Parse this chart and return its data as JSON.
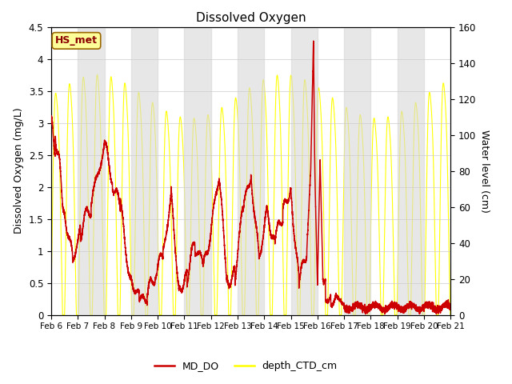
{
  "title": "Dissolved Oxygen",
  "ylabel_left": "Dissolved Oxygen (mg/L)",
  "ylabel_right": "Water level (cm)",
  "ylim_left": [
    0.0,
    4.5
  ],
  "ylim_right": [
    0,
    160
  ],
  "yticks_left": [
    0.0,
    0.5,
    1.0,
    1.5,
    2.0,
    2.5,
    3.0,
    3.5,
    4.0,
    4.5
  ],
  "yticks_right": [
    0,
    20,
    40,
    60,
    80,
    100,
    120,
    140,
    160
  ],
  "xtick_labels": [
    "Feb 6",
    "Feb 7",
    "Feb 8",
    "Feb 9",
    "Feb 10",
    "Feb 11",
    "Feb 12",
    "Feb 13",
    "Feb 14",
    "Feb 15",
    "Feb 16",
    "Feb 17",
    "Feb 18",
    "Feb 19",
    "Feb 20",
    "Feb 21"
  ],
  "color_do": "#cc0000",
  "color_depth": "#ffff00",
  "legend_label_do": "MD_DO",
  "legend_label_depth": "depth_CTD_cm",
  "station_label": "HS_met",
  "station_label_color": "#8b0000",
  "station_box_facecolor": "#ffff99",
  "station_box_edgecolor": "#996600",
  "bg_band_color": "#d8d8d8",
  "bg_band_alpha": 0.6,
  "n_points": 7200,
  "figsize": [
    6.4,
    4.8
  ],
  "dpi": 100
}
